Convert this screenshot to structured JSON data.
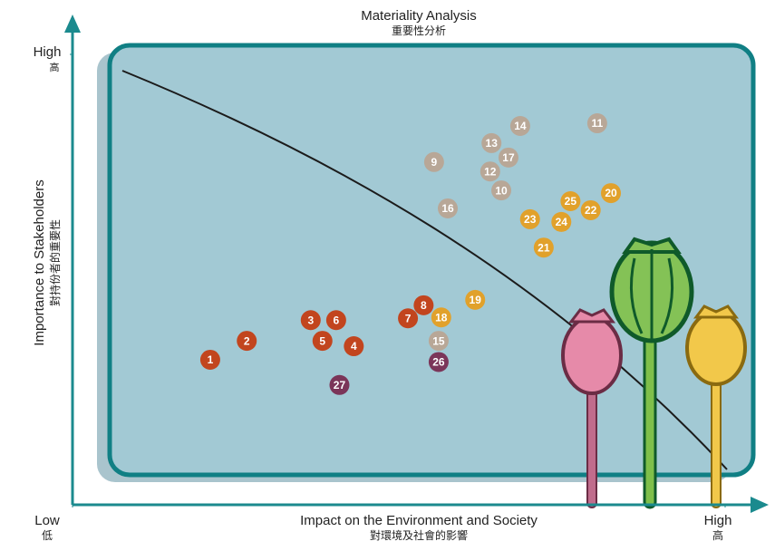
{
  "chart_data": {
    "type": "scatter",
    "title": "Materiality Analysis",
    "subtitle": "重要性分析",
    "x_label": "Impact on the Environment and Society",
    "x_sublabel": "對環境及社會的影響",
    "y_label": "Importance to Stakeholders",
    "y_sublabel": "對持份者的重要性",
    "xlim": [
      0,
      100
    ],
    "ylim": [
      0,
      100
    ],
    "xticks": [
      {
        "value": 0,
        "label": "Low",
        "sublabel": "低"
      },
      {
        "value": 100,
        "label": "High",
        "sublabel": "高"
      }
    ],
    "yticks": [
      {
        "value": 100,
        "label": "High",
        "sublabel": "高"
      }
    ],
    "series": [
      {
        "color": "#c2451e",
        "labels": [
          "1",
          "2",
          "3",
          "4",
          "5",
          "6",
          "7",
          "8"
        ],
        "x": [
          21.1,
          26.7,
          36.5,
          43.1,
          38.3,
          40.4,
          51.4,
          53.8
        ],
        "values": [
          32.2,
          36.4,
          41.0,
          35.2,
          36.4,
          41.0,
          41.4,
          44.3
        ]
      },
      {
        "color": "#b8a797",
        "labels": [
          "9",
          "10",
          "11",
          "12",
          "13",
          "14",
          "15",
          "16",
          "17"
        ],
        "x": [
          55.4,
          65.7,
          80.4,
          64.0,
          64.2,
          68.6,
          56.1,
          57.5,
          66.8
        ],
        "values": [
          76.1,
          69.8,
          84.7,
          74.0,
          80.3,
          84.1,
          36.4,
          65.8,
          77.1
        ]
      },
      {
        "color": "#e1a12b",
        "labels": [
          "18",
          "19",
          "20",
          "21",
          "22",
          "23",
          "24",
          "25"
        ],
        "x": [
          56.5,
          61.7,
          82.5,
          72.2,
          79.4,
          70.1,
          74.9,
          76.3
        ],
        "values": [
          41.6,
          45.5,
          69.2,
          57.1,
          65.4,
          63.4,
          62.8,
          67.4
        ]
      },
      {
        "color": "#7b3559",
        "labels": [
          "26",
          "27"
        ],
        "x": [
          56.1,
          40.9
        ],
        "values": [
          31.7,
          26.6
        ]
      }
    ]
  }
}
